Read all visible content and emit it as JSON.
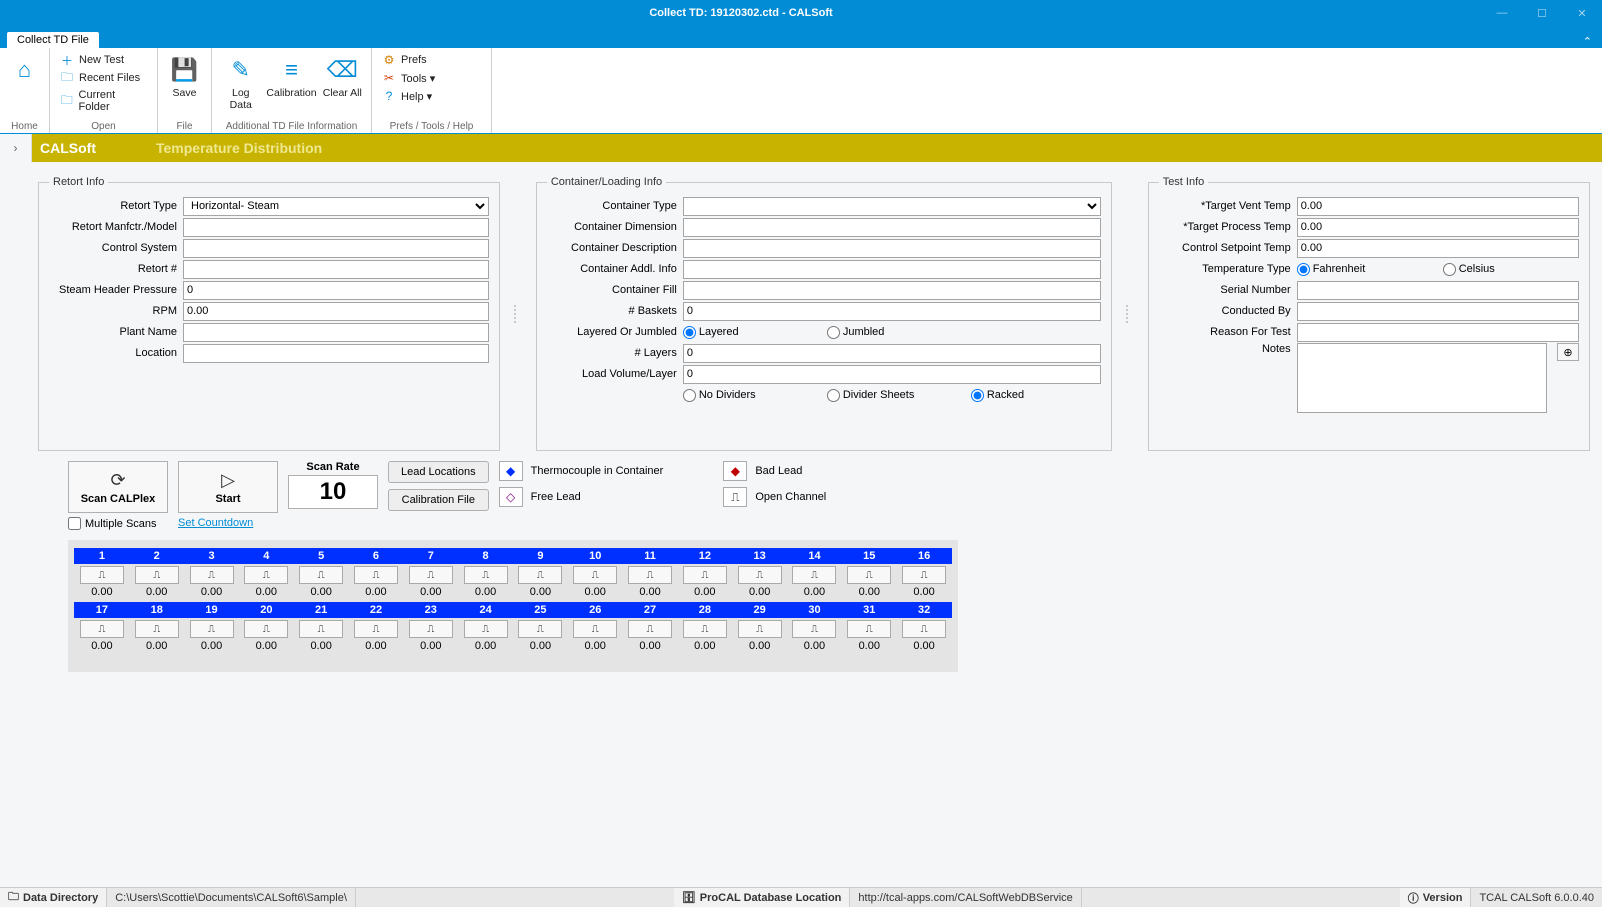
{
  "window": {
    "title": "Collect TD: 19120302.ctd - CALSoft",
    "tab": "Collect TD File"
  },
  "ribbon": {
    "home_group": "Home",
    "open_group": "Open",
    "file_group": "File",
    "add_group": "Additional TD File Information",
    "prefs_group": "Prefs / Tools / Help",
    "new_test": "New Test",
    "recent": "Recent Files",
    "current": "Current Folder",
    "save": "Save",
    "log": "Log Data",
    "calib": "Calibration",
    "clear": "Clear All",
    "prefs": "Prefs",
    "tools": "Tools ▾",
    "help": "Help ▾"
  },
  "band": {
    "app": "CALSoft",
    "page": "Temperature Distribution"
  },
  "retort": {
    "legend": "Retort Info",
    "type_label": "Retort Type",
    "type_value": "Horizontal- Steam",
    "mfr_label": "Retort Manfctr./Model",
    "mfr_value": "",
    "ctrl_label": "Control System",
    "ctrl_value": "",
    "num_label": "Retort #",
    "num_value": "",
    "steam_label": "Steam Header Pressure",
    "steam_value": "0",
    "rpm_label": "RPM",
    "rpm_value": "0.00",
    "plant_label": "Plant Name",
    "plant_value": "",
    "loc_label": "Location",
    "loc_value": ""
  },
  "container": {
    "legend": "Container/Loading Info",
    "type_label": "Container Type",
    "type_value": "",
    "dim_label": "Container Dimension",
    "dim_value": "",
    "desc_label": "Container Description",
    "desc_value": "",
    "addl_label": "Container Addl. Info",
    "addl_value": "",
    "fill_label": "Container Fill",
    "fill_value": "",
    "baskets_label": "# Baskets",
    "baskets_value": "0",
    "layjum_label": "Layered Or Jumbled",
    "layered": "Layered",
    "jumbled": "Jumbled",
    "layers_label": "# Layers",
    "layers_value": "0",
    "lvl_label": "Load Volume/Layer",
    "lvl_value": "0",
    "nodiv": "No Dividers",
    "divsheets": "Divider Sheets",
    "racked": "Racked"
  },
  "test": {
    "legend": "Test Info",
    "vent_label": "*Target Vent Temp",
    "vent_value": "0.00",
    "proc_label": "*Target Process Temp",
    "proc_value": "0.00",
    "set_label": "Control Setpoint Temp",
    "set_value": "0.00",
    "ttype_label": "Temperature Type",
    "fahr": "Fahrenheit",
    "cels": "Celsius",
    "sn_label": "Serial Number",
    "sn_value": "",
    "cond_label": "Conducted By",
    "cond_value": "",
    "reason_label": "Reason For Test",
    "reason_value": "",
    "notes_label": "Notes",
    "notes_value": ""
  },
  "scan": {
    "scan_calplex": "Scan CALPlex",
    "start": "Start",
    "scan_rate_label": "Scan Rate",
    "scan_rate_value": "10",
    "lead_loc": "Lead Locations",
    "cal_file": "Calibration File",
    "tc_container": "Thermocouple in Container",
    "free_lead": "Free Lead",
    "bad_lead": "Bad Lead",
    "open_channel": "Open Channel",
    "multi": "Multiple Scans",
    "countdown": "Set Countdown"
  },
  "channels": {
    "headers": [
      "1",
      "2",
      "3",
      "4",
      "5",
      "6",
      "7",
      "8",
      "9",
      "10",
      "11",
      "12",
      "13",
      "14",
      "15",
      "16",
      "17",
      "18",
      "19",
      "20",
      "21",
      "22",
      "23",
      "24",
      "25",
      "26",
      "27",
      "28",
      "29",
      "30",
      "31",
      "32"
    ],
    "value": "0.00",
    "header_bg": "#0030ff"
  },
  "status": {
    "datadir_label": "Data Directory",
    "datadir_value": "C:\\Users\\Scottie\\Documents\\CALSoft6\\Sample\\",
    "procal_label": "ProCAL Database Location",
    "procal_value": "http://tcal-apps.com/CALSoftWebDBService",
    "version_label": "Version",
    "version_value": "TCAL CALSoft 6.0.0.40"
  }
}
